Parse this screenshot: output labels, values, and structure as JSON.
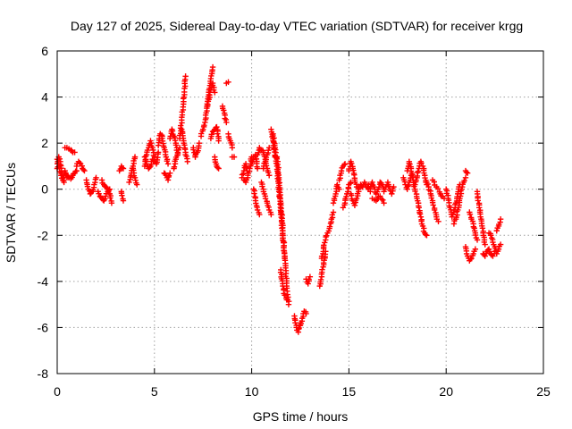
{
  "chart_data": {
    "type": "scatter",
    "title": "Day 127 of 2025, Sidereal Day-to-day VTEC variation (SDTVAR) for receiver krgg",
    "xlabel": "GPS time / hours",
    "ylabel": "SDTVAR / TECUs",
    "xlim": [
      0,
      25
    ],
    "ylim": [
      -8,
      6
    ],
    "xticks": [
      "0",
      "5",
      "10",
      "15",
      "20",
      "25"
    ],
    "yticks": [
      "-8",
      "-6",
      "-4",
      "-2",
      "0",
      "2",
      "4",
      "6"
    ],
    "grid": true,
    "marker": "+",
    "marker_color": "#ff0000",
    "series": [
      {
        "name": "SDTVAR",
        "segments": [
          {
            "x": [
              0.0,
              0.1,
              0.2,
              0.3,
              0.4,
              0.5
            ],
            "y": [
              1.3,
              1.0,
              0.6,
              0.4,
              0.8,
              0.5
            ]
          },
          {
            "x": [
              0.0,
              0.08,
              0.16,
              0.25,
              0.35
            ],
            "y": [
              0.9,
              1.4,
              1.2,
              0.7,
              0.3
            ]
          },
          {
            "x": [
              0.4,
              0.5,
              0.6,
              0.7,
              0.8,
              0.9
            ],
            "y": [
              1.8,
              1.8,
              1.75,
              1.7,
              1.6,
              1.6
            ]
          },
          {
            "x": [
              0.5,
              0.6,
              0.7,
              0.8,
              0.9,
              1.0
            ],
            "y": [
              0.6,
              0.5,
              0.45,
              0.6,
              0.7,
              0.8
            ]
          },
          {
            "x": [
              1.0,
              1.1,
              1.2,
              1.3,
              1.4
            ],
            "y": [
              1.0,
              1.2,
              1.1,
              0.9,
              0.8
            ]
          },
          {
            "x": [
              1.5,
              1.6,
              1.7,
              1.8,
              1.9,
              2.0
            ],
            "y": [
              0.4,
              0.0,
              -0.2,
              -0.1,
              0.2,
              0.5
            ]
          },
          {
            "x": [
              2.1,
              2.2,
              2.3,
              2.4,
              2.5,
              2.6,
              2.7
            ],
            "y": [
              -0.1,
              -0.3,
              -0.4,
              -0.5,
              -0.3,
              -0.1,
              0.0
            ]
          },
          {
            "x": [
              2.3,
              2.4,
              2.5,
              2.6,
              2.7,
              2.8
            ],
            "y": [
              0.4,
              0.2,
              0.1,
              0.0,
              -0.2,
              -0.6
            ]
          },
          {
            "x": [
              3.2,
              3.3,
              3.4
            ],
            "y": [
              0.8,
              1.0,
              0.9
            ]
          },
          {
            "x": [
              3.3,
              3.4
            ],
            "y": [
              -0.1,
              -0.5
            ]
          },
          {
            "x": [
              3.7,
              3.8,
              3.9,
              4.0
            ],
            "y": [
              0.3,
              0.6,
              1.0,
              1.4
            ]
          },
          {
            "x": [
              3.9,
              4.0,
              4.1
            ],
            "y": [
              0.9,
              0.5,
              0.2
            ]
          },
          {
            "x": [
              4.5,
              4.6,
              4.7,
              4.8,
              4.9,
              5.0,
              5.1,
              5.2
            ],
            "y": [
              1.0,
              1.5,
              1.8,
              2.1,
              1.8,
              1.3,
              1.1,
              1.6
            ]
          },
          {
            "x": [
              4.5,
              4.6,
              4.7,
              4.8,
              4.9,
              5.0
            ],
            "y": [
              1.4,
              1.1,
              0.9,
              1.0,
              1.3,
              1.2
            ]
          },
          {
            "x": [
              5.2,
              5.3,
              5.4,
              5.5,
              5.6,
              5.7
            ],
            "y": [
              1.9,
              2.4,
              2.3,
              1.8,
              1.4,
              1.1
            ]
          },
          {
            "x": [
              5.5,
              5.6,
              5.7,
              5.8
            ],
            "y": [
              0.7,
              0.6,
              0.4,
              0.7
            ]
          },
          {
            "x": [
              5.8,
              5.9,
              6.0,
              6.1,
              6.2
            ],
            "y": [
              2.2,
              2.6,
              2.3,
              2.0,
              1.5
            ]
          },
          {
            "x": [
              6.0,
              6.1,
              6.2,
              6.3
            ],
            "y": [
              0.9,
              1.3,
              1.6,
              1.8
            ]
          },
          {
            "x": [
              6.3,
              6.4,
              6.5,
              6.6
            ],
            "y": [
              2.2,
              3.0,
              3.8,
              4.9
            ]
          },
          {
            "x": [
              6.4,
              6.5,
              6.6,
              6.7
            ],
            "y": [
              2.6,
              2.1,
              1.6,
              1.2
            ]
          },
          {
            "x": [
              7.0,
              7.1,
              7.2,
              7.3
            ],
            "y": [
              1.8,
              1.4,
              1.6,
              2.0
            ]
          },
          {
            "x": [
              7.4,
              7.5,
              7.6,
              7.7,
              7.8,
              7.9,
              8.0
            ],
            "y": [
              2.3,
              2.6,
              2.9,
              3.4,
              4.1,
              4.8,
              5.3
            ]
          },
          {
            "x": [
              7.7,
              7.8,
              7.9,
              8.0,
              8.1
            ],
            "y": [
              3.6,
              3.9,
              4.3,
              4.6,
              4.2
            ]
          },
          {
            "x": [
              7.9,
              8.0,
              8.1,
              8.2,
              8.3
            ],
            "y": [
              2.2,
              2.5,
              2.6,
              2.7,
              2.1
            ]
          },
          {
            "x": [
              8.1,
              8.2,
              8.3
            ],
            "y": [
              1.4,
              1.0,
              0.9
            ]
          },
          {
            "x": [
              8.5,
              8.6,
              8.7
            ],
            "y": [
              3.6,
              3.3,
              2.9
            ]
          },
          {
            "x": [
              8.8,
              8.9,
              9.0
            ],
            "y": [
              2.4,
              2.1,
              1.8
            ]
          },
          {
            "x": [
              8.7,
              8.8
            ],
            "y": [
              4.6,
              4.65
            ]
          },
          {
            "x": [
              9.0,
              9.1
            ],
            "y": [
              1.4,
              1.4
            ]
          },
          {
            "x": [
              9.5,
              9.6,
              9.7,
              9.8
            ],
            "y": [
              0.5,
              0.8,
              1.1,
              0.7
            ]
          },
          {
            "x": [
              9.6,
              9.7,
              9.8,
              9.9,
              10.0
            ],
            "y": [
              0.4,
              0.3,
              0.5,
              0.9,
              1.4
            ]
          },
          {
            "x": [
              10.0,
              10.1,
              10.2,
              10.3
            ],
            "y": [
              1.1,
              1.4,
              1.5,
              0.9
            ]
          },
          {
            "x": [
              10.1,
              10.2,
              10.3,
              10.4
            ],
            "y": [
              0.0,
              -0.5,
              -0.9,
              -1.1
            ]
          },
          {
            "x": [
              10.3,
              10.4,
              10.5,
              10.6,
              10.7,
              10.8,
              10.9
            ],
            "y": [
              1.5,
              1.8,
              1.7,
              1.6,
              1.3,
              0.9,
              0.6
            ]
          },
          {
            "x": [
              10.5,
              10.6,
              10.7,
              10.8,
              10.9,
              11.0
            ],
            "y": [
              0.3,
              0.0,
              -0.3,
              -0.6,
              -0.9,
              -1.1
            ]
          },
          {
            "x": [
              10.6,
              10.7,
              10.8,
              10.9
            ],
            "y": [
              0.9,
              1.2,
              1.5,
              1.8
            ]
          },
          {
            "x": [
              11.0,
              11.1,
              11.2
            ],
            "y": [
              2.6,
              2.1,
              1.4
            ]
          },
          {
            "x": [
              11.1,
              11.2,
              11.3,
              11.4,
              11.5,
              11.6,
              11.7,
              11.8,
              11.9
            ],
            "y": [
              2.4,
              1.8,
              1.0,
              0.0,
              -1.0,
              -2.0,
              -3.0,
              -4.2,
              -5.0
            ]
          },
          {
            "x": [
              11.3,
              11.4,
              11.5,
              11.6,
              11.7
            ],
            "y": [
              1.4,
              0.5,
              -0.6,
              -1.8,
              -3.0
            ]
          },
          {
            "x": [
              11.5,
              11.6,
              11.7,
              11.8
            ],
            "y": [
              -3.5,
              -4.2,
              -4.6,
              -4.8
            ]
          },
          {
            "x": [
              12.2,
              12.3,
              12.4,
              12.5
            ],
            "y": [
              -5.5,
              -6.0,
              -6.2,
              -5.8
            ]
          },
          {
            "x": [
              12.5,
              12.6,
              12.7,
              12.8
            ],
            "y": [
              -5.9,
              -5.6,
              -5.3,
              -5.4
            ]
          },
          {
            "x": [
              12.8,
              12.9,
              13.0
            ],
            "y": [
              -3.9,
              -4.1,
              -3.8
            ]
          },
          {
            "x": [
              13.5,
              13.6,
              13.7,
              13.8
            ],
            "y": [
              -4.2,
              -3.8,
              -3.2,
              -2.7
            ]
          },
          {
            "x": [
              13.6,
              13.7,
              13.8,
              13.9,
              14.0,
              14.1,
              14.2
            ],
            "y": [
              -3.0,
              -2.5,
              -2.2,
              -1.9,
              -1.7,
              -1.3,
              -1.0
            ]
          },
          {
            "x": [
              14.2,
              14.3,
              14.4,
              14.5
            ],
            "y": [
              -0.6,
              -0.3,
              0.2,
              0.0
            ]
          },
          {
            "x": [
              14.5,
              14.6,
              14.7,
              14.8
            ],
            "y": [
              0.4,
              0.7,
              1.0,
              1.1
            ]
          },
          {
            "x": [
              14.7,
              14.8,
              14.9,
              15.0,
              15.1
            ],
            "y": [
              -0.8,
              -0.6,
              -0.2,
              0.2,
              0.3
            ]
          },
          {
            "x": [
              15.0,
              15.1,
              15.2,
              15.3,
              15.4,
              15.5,
              15.6,
              15.7,
              15.8,
              15.9,
              16.0
            ],
            "y": [
              0.8,
              1.2,
              0.9,
              0.4,
              0.1,
              0.0,
              0.2,
              0.1,
              0.3,
              0.1,
              0.0
            ]
          },
          {
            "x": [
              15.1,
              15.2,
              15.3,
              15.4,
              15.5
            ],
            "y": [
              -0.2,
              -0.5,
              -0.7,
              -0.4,
              -0.1
            ]
          },
          {
            "x": [
              16.0,
              16.1,
              16.2,
              16.3,
              16.4,
              16.5,
              16.6,
              16.7,
              16.8,
              16.9,
              17.0,
              17.1,
              17.2,
              17.3
            ],
            "y": [
              0.2,
              -0.1,
              0.3,
              0.1,
              -0.2,
              0.0,
              0.3,
              0.2,
              -0.1,
              0.1,
              0.3,
              0.0,
              -0.2,
              0.1
            ]
          },
          {
            "x": [
              16.2,
              16.4,
              16.6,
              16.8
            ],
            "y": [
              -0.4,
              -0.5,
              -0.3,
              -0.6
            ]
          },
          {
            "x": [
              17.8,
              17.9,
              18.0,
              18.1,
              18.2,
              18.3
            ],
            "y": [
              0.5,
              0.2,
              0.0,
              0.3,
              0.6,
              0.4
            ]
          },
          {
            "x": [
              18.0,
              18.1,
              18.2,
              18.3,
              18.4,
              18.5,
              18.6,
              18.7,
              18.8,
              18.9,
              19.0
            ],
            "y": [
              0.8,
              1.2,
              0.9,
              0.4,
              0.0,
              -0.4,
              -0.8,
              -1.2,
              -1.6,
              -1.9,
              -2.0
            ]
          },
          {
            "x": [
              18.4,
              18.5,
              18.6,
              18.7,
              18.8,
              18.9,
              19.0
            ],
            "y": [
              0.2,
              0.5,
              0.9,
              1.2,
              1.0,
              0.6,
              0.2
            ]
          },
          {
            "x": [
              19.0,
              19.1,
              19.2,
              19.3,
              19.4,
              19.5,
              19.6
            ],
            "y": [
              0.3,
              0.1,
              -0.2,
              -0.5,
              -0.9,
              -1.2,
              -1.4
            ]
          },
          {
            "x": [
              19.3,
              19.5,
              19.7,
              19.9
            ],
            "y": [
              0.4,
              0.1,
              -0.2,
              -0.4
            ]
          },
          {
            "x": [
              20.0,
              20.1,
              20.2,
              20.3,
              20.4,
              20.5,
              20.6,
              20.7
            ],
            "y": [
              0.0,
              -0.4,
              -0.8,
              -1.2,
              -1.0,
              -0.6,
              -0.2,
              0.2
            ]
          },
          {
            "x": [
              20.4,
              20.5,
              20.6,
              20.7,
              20.8,
              20.9,
              21.0
            ],
            "y": [
              -1.5,
              -1.3,
              -0.9,
              -0.4,
              0.0,
              0.3,
              0.5
            ]
          },
          {
            "x": [
              21.0,
              21.1
            ],
            "y": [
              0.8,
              0.7
            ]
          },
          {
            "x": [
              21.0,
              21.1,
              21.2,
              21.3,
              21.4,
              21.5
            ],
            "y": [
              -2.5,
              -2.9,
              -3.1,
              -3.0,
              -2.8,
              -2.6
            ]
          },
          {
            "x": [
              21.2,
              21.3,
              21.4,
              21.5,
              21.6
            ],
            "y": [
              -1.0,
              -1.3,
              -1.5,
              -1.9,
              -2.2
            ]
          },
          {
            "x": [
              21.6,
              21.7,
              21.8,
              21.9,
              22.0
            ],
            "y": [
              -0.1,
              -0.8,
              -1.3,
              -1.9,
              -2.4
            ]
          },
          {
            "x": [
              21.9,
              22.0,
              22.1,
              22.2,
              22.3,
              22.4,
              22.5
            ],
            "y": [
              -2.8,
              -2.9,
              -2.7,
              -2.6,
              -2.8,
              -2.9,
              -2.7
            ]
          },
          {
            "x": [
              22.2,
              22.3,
              22.4,
              22.5,
              22.6,
              22.7,
              22.8
            ],
            "y": [
              -1.9,
              -2.0,
              -2.3,
              -2.5,
              -2.8,
              -2.6,
              -2.4
            ]
          },
          {
            "x": [
              22.6,
              22.7,
              22.8
            ],
            "y": [
              -1.8,
              -1.6,
              -1.3
            ]
          }
        ]
      }
    ]
  }
}
